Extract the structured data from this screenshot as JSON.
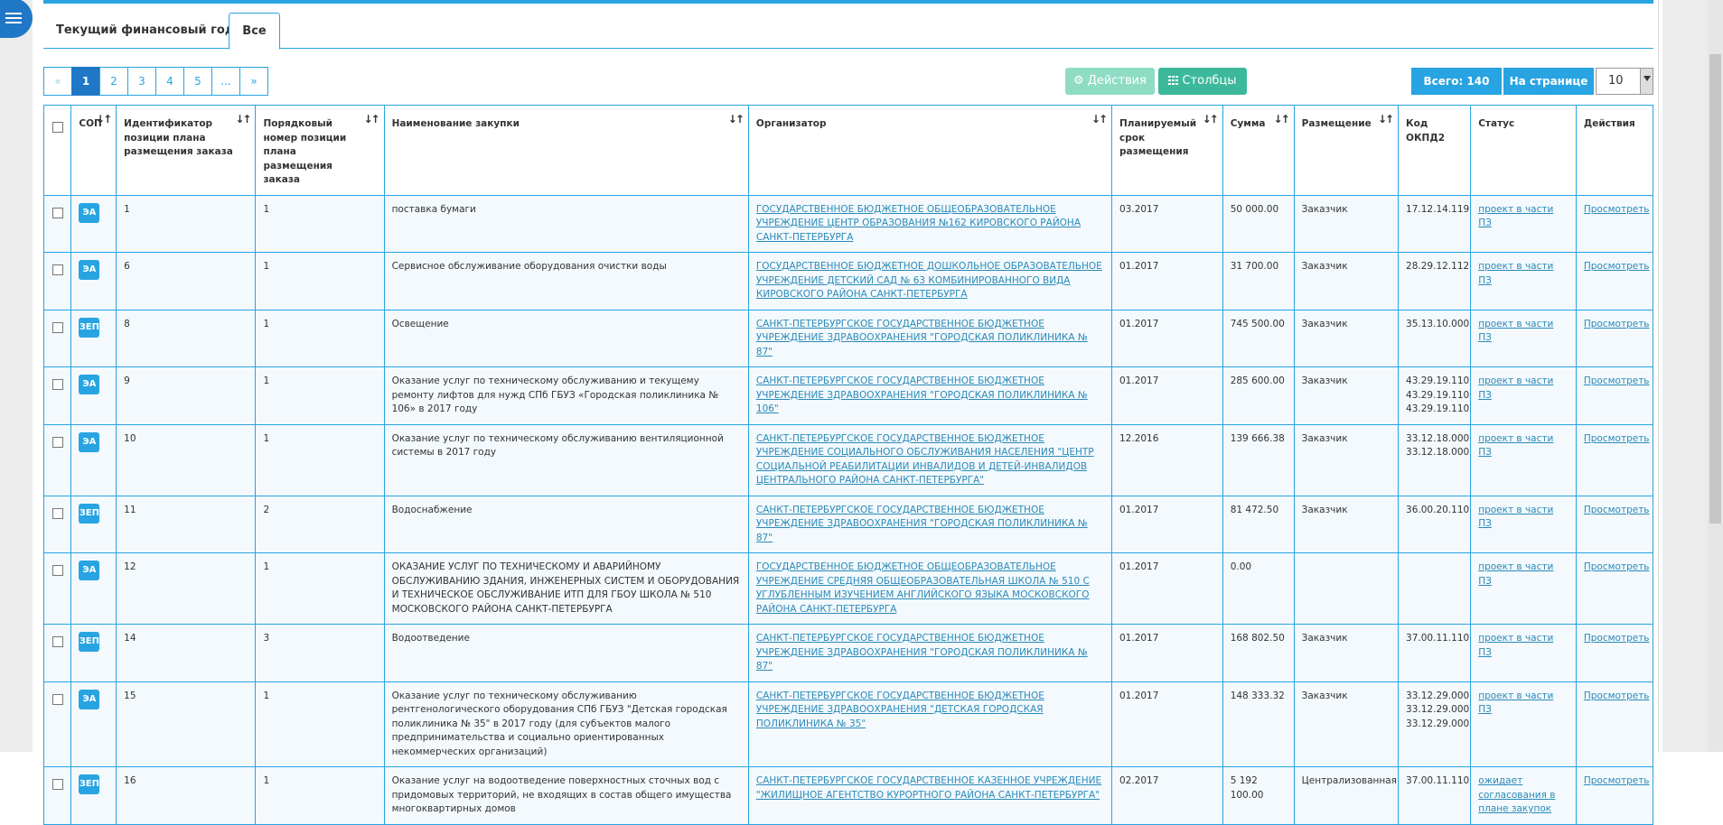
{
  "tabs": [
    {
      "label": "Текущий финансовый год"
    },
    {
      "label": "Все"
    }
  ],
  "pagination": {
    "prev": "«",
    "pages": [
      "1",
      "2",
      "3",
      "4",
      "5",
      "..."
    ],
    "next": "»",
    "active": "1"
  },
  "toolbar": {
    "actions_label": "Действия",
    "columns_label": "Столбцы",
    "total_label": "Всего: 140",
    "per_page_label": "На странице",
    "per_page_value": "10"
  },
  "colors": {
    "accent": "#28a4e2",
    "active_page": "#1f77c6",
    "columns_button": "#3cb99a",
    "actions_button_disabled": "#8fdcc4"
  },
  "table": {
    "headers": {
      "sop": "СОП",
      "id": "Идентификатор позиции плана размещения заказа",
      "seq": "Порядковый номер позиции плана размещения заказа",
      "name": "Наименование закупки",
      "org": "Организатор",
      "term": "Планируемый срок размещения",
      "sum": "Сумма",
      "place": "Размещение",
      "okpd": "Код ОКПД2",
      "status": "Статус",
      "actions": "Действия"
    },
    "sort_icon": "sort-arrows-icon",
    "rows": [
      {
        "sop": "ЭА",
        "id": "1",
        "seq": "1",
        "name": "поставка бумаги",
        "org": "ГОСУДАРСТВЕННОЕ БЮДЖЕТНОЕ ОБЩЕОБРАЗОВАТЕЛЬНОЕ УЧРЕЖДЕНИЕ ЦЕНТР ОБРАЗОВАНИЯ №162 КИРОВСКОГО РАЙОНА САНКТ-ПЕТЕРБУРГА",
        "term": "03.2017",
        "sum": "50 000.00",
        "place": "Заказчик",
        "okpd": "17.12.14.119",
        "status": "проект в части ПЗ",
        "action": "Просмотреть"
      },
      {
        "sop": "ЭА",
        "id": "6",
        "seq": "1",
        "name": "Сервисное обслуживание оборудования очистки воды",
        "org": "ГОСУДАРСТВЕННОЕ БЮДЖЕТНОЕ ДОШКОЛЬНОЕ ОБРАЗОВАТЕЛЬНОЕ УЧРЕЖДЕНИЕ ДЕТСКИЙ САД № 63 КОМБИНИРОВАННОГО ВИДА КИРОВСКОГО РАЙОНА САНКТ-ПЕТЕРБУРГА",
        "term": "01.2017",
        "sum": "31 700.00",
        "place": "Заказчик",
        "okpd": "28.29.12.112",
        "status": "проект в части ПЗ",
        "action": "Просмотреть"
      },
      {
        "sop": "ЗЕП",
        "id": "8",
        "seq": "1",
        "name": "Освещение",
        "org": "САНКТ-ПЕТЕРБУРГСКОЕ ГОСУДАРСТВЕННОЕ БЮДЖЕТНОЕ УЧРЕЖДЕНИЕ ЗДРАВООХРАНЕНИЯ \"ГОРОДСКАЯ ПОЛИКЛИНИКА № 87\"",
        "term": "01.2017",
        "sum": "745 500.00",
        "place": "Заказчик",
        "okpd": "35.13.10.000",
        "status": "проект в части ПЗ",
        "action": "Просмотреть"
      },
      {
        "sop": "ЭА",
        "id": "9",
        "seq": "1",
        "name": "Оказание услуг по техническому обслуживанию и текущему ремонту лифтов для нужд СПб ГБУЗ «Городская поликлиника № 106» в 2017 году",
        "org": "САНКТ-ПЕТЕРБУРГСКОЕ ГОСУДАРСТВЕННОЕ БЮДЖЕТНОЕ УЧРЕЖДЕНИЕ ЗДРАВООХРАНЕНИЯ \"ГОРОДСКАЯ ПОЛИКЛИНИКА № 106\"",
        "term": "01.2017",
        "sum": "285 600.00",
        "place": "Заказчик",
        "okpd": "43.29.19.110\n43.29.19.110\n43.29.19.110",
        "status": "проект в части ПЗ",
        "action": "Просмотреть"
      },
      {
        "sop": "ЭА",
        "id": "10",
        "seq": "1",
        "name": "Оказание услуг по техническому обслуживанию вентиляционной системы в 2017 году",
        "org": "САНКТ-ПЕТЕРБУРГСКОЕ ГОСУДАРСТВЕННОЕ БЮДЖЕТНОЕ УЧРЕЖДЕНИЕ СОЦИАЛЬНОГО ОБСЛУЖИВАНИЯ НАСЕЛЕНИЯ \"ЦЕНТР СОЦИАЛЬНОЙ РЕАБИЛИТАЦИИ ИНВАЛИДОВ И ДЕТЕЙ-ИНВАЛИДОВ ЦЕНТРАЛЬНОГО РАЙОНА САНКТ-ПЕТЕРБУРГА\"",
        "term": "12.2016",
        "sum": "139 666.38",
        "place": "Заказчик",
        "okpd": "33.12.18.000\n33.12.18.000",
        "status": "проект в части ПЗ",
        "action": "Просмотреть"
      },
      {
        "sop": "ЗЕП",
        "id": "11",
        "seq": "2",
        "name": "Водоснабжение",
        "org": "САНКТ-ПЕТЕРБУРГСКОЕ ГОСУДАРСТВЕННОЕ БЮДЖЕТНОЕ УЧРЕЖДЕНИЕ ЗДРАВООХРАНЕНИЯ \"ГОРОДСКАЯ ПОЛИКЛИНИКА № 87\"",
        "term": "01.2017",
        "sum": "81 472.50",
        "place": "Заказчик",
        "okpd": "36.00.20.110",
        "status": "проект в части ПЗ",
        "action": "Просмотреть"
      },
      {
        "sop": "ЭА",
        "id": "12",
        "seq": "1",
        "name": "ОКАЗАНИЕ УСЛУГ ПО ТЕХНИЧЕСКОМУ И АВАРИЙНОМУ ОБСЛУЖИВАНИЮ ЗДАНИЯ, ИНЖЕНЕРНЫХ СИСТЕМ И ОБОРУДОВАНИЯ И ТЕХНИЧЕСКОЕ ОБСЛУЖИВАНИЕ ИТП ДЛЯ ГБОУ ШКОЛА № 510 МОСКОВСКОГО РАЙОНА САНКТ-ПЕТЕРБУРГА",
        "org": "ГОСУДАРСТВЕННОЕ БЮДЖЕТНОЕ ОБЩЕОБРАЗОВАТЕЛЬНОЕ УЧРЕЖДЕНИЕ СРЕДНЯЯ ОБЩЕОБРАЗОВАТЕЛЬНАЯ ШКОЛА № 510 С УГЛУБЛЕННЫМ ИЗУЧЕНИЕМ АНГЛИЙСКОГО ЯЗЫКА МОСКОВСКОГО РАЙОНА САНКТ-ПЕТЕРБУРГА",
        "term": "01.2017",
        "sum": "0.00",
        "place": "",
        "okpd": "",
        "status": "проект в части ПЗ",
        "action": "Просмотреть"
      },
      {
        "sop": "ЗЕП",
        "id": "14",
        "seq": "3",
        "name": "Водоотведение",
        "org": "САНКТ-ПЕТЕРБУРГСКОЕ ГОСУДАРСТВЕННОЕ БЮДЖЕТНОЕ УЧРЕЖДЕНИЕ ЗДРАВООХРАНЕНИЯ \"ГОРОДСКАЯ ПОЛИКЛИНИКА № 87\"",
        "term": "01.2017",
        "sum": "168 802.50",
        "place": "Заказчик",
        "okpd": "37.00.11.110",
        "status": "проект в части ПЗ",
        "action": "Просмотреть"
      },
      {
        "sop": "ЭА",
        "id": "15",
        "seq": "1",
        "name": "Оказание услуг по техническому обслуживанию рентгенологического оборудования СПб ГБУЗ \"Детская городская поликлиника № 35\" в 2017 году (для субъектов малого предпринимательства и социально ориентированных некоммерческих организаций)",
        "org": "САНКТ-ПЕТЕРБУРГСКОЕ ГОСУДАРСТВЕННОЕ БЮДЖЕТНОЕ УЧРЕЖДЕНИЕ ЗДРАВООХРАНЕНИЯ \"ДЕТСКАЯ ГОРОДСКАЯ ПОЛИКЛИНИКА № 35\"",
        "term": "01.2017",
        "sum": "148 333.32",
        "place": "Заказчик",
        "okpd": "33.12.29.000\n33.12.29.000\n33.12.29.000",
        "status": "проект в части ПЗ",
        "action": "Просмотреть"
      },
      {
        "sop": "ЗЕП",
        "id": "16",
        "seq": "1",
        "name": "Оказание услуг на водоотведение поверхностных сточных вод с придомовых территорий, не входящих в состав общего имущества многоквартирных домов",
        "org": "САНКТ-ПЕТЕРБУРГСКОЕ ГОСУДАРСТВЕННОЕ КАЗЕННОЕ УЧРЕЖДЕНИЕ \"ЖИЛИЩНОЕ АГЕНТСТВО КУРОРТНОГО РАЙОНА САНКТ-ПЕТЕРБУРГА\"",
        "term": "02.2017",
        "sum": "5 192 100.00",
        "place": "Централизованная",
        "okpd": "37.00.11.110",
        "status": "ожидает согласования в плане закупок",
        "action": "Просмотреть"
      }
    ]
  }
}
